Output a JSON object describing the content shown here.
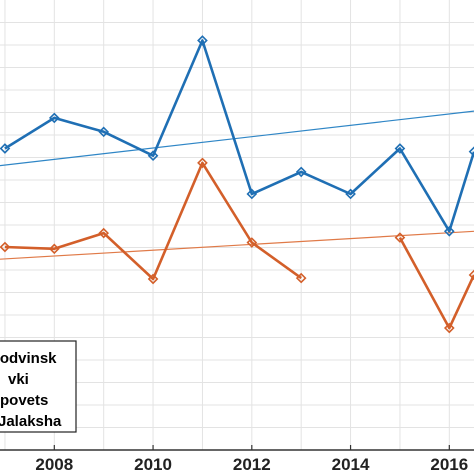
{
  "chart_data": {
    "type": "line",
    "xlim": [
      2006.9,
      2016.5
    ],
    "ylim": [
      0,
      100
    ],
    "grid": true,
    "x_ticks": [
      2008,
      2010,
      2012,
      2014,
      2016
    ],
    "x_tick_labels": [
      "2008",
      "2010",
      "2012",
      "2014",
      "2016"
    ],
    "legend_placement": "bottom-left",
    "legend_entries": [
      "rodvinsk",
      "vki",
      "povets",
      "Jalaksha"
    ],
    "series": [
      {
        "color": "#1f6fb4",
        "marker": "diamond",
        "x": [
          2007,
          2008,
          2009,
          2010,
          2011,
          2012,
          2013,
          2014,
          2015,
          2016,
          2016.5
        ],
        "y": [
          67.0,
          73.8,
          70.7,
          65.4,
          91.0,
          56.9,
          61.8,
          56.9,
          67.0,
          48.6,
          66.3
        ]
      },
      {
        "color": "#d35f2a",
        "marker": "diamond",
        "x": [
          2007,
          2008,
          2009,
          2010,
          2011,
          2012,
          2013,
          2014,
          2015,
          2016,
          2016.5
        ],
        "y": [
          45.1,
          44.7,
          48.2,
          38.0,
          63.8,
          46.1,
          38.2,
          null,
          47.2,
          27.1,
          38.9
        ]
      }
    ],
    "trendlines": [
      {
        "color": "#2f86c6",
        "y_start": 63.2,
        "y_end": 75.3
      },
      {
        "color": "#e07a48",
        "y_start": 42.4,
        "y_end": 48.6
      }
    ]
  }
}
